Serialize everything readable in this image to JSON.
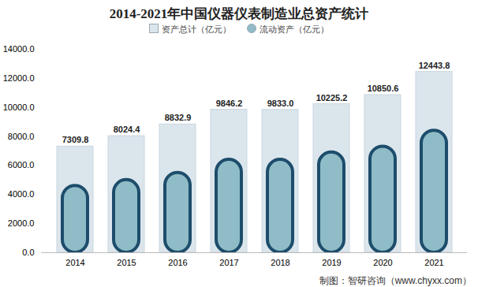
{
  "chart_data": {
    "type": "bar",
    "title": "2014-2021年中国仪器仪表制造业总资产统计",
    "source": "制图：智研咨询（www.chyxx.com）",
    "categories": [
      "2014",
      "2015",
      "2016",
      "2017",
      "2018",
      "2019",
      "2020",
      "2021"
    ],
    "series": [
      {
        "name": "资产总计（亿元）",
        "color": "#dbe5ec",
        "values": [
          7309.8,
          8024.4,
          8832.9,
          9846.2,
          9833.0,
          10225.2,
          10850.6,
          12443.8
        ],
        "value_labels": [
          "7309.8",
          "8024.4",
          "8832.9",
          "9846.2",
          "9833.0",
          "10225.2",
          "10850.6",
          "12443.8"
        ]
      },
      {
        "name": "流动资产（亿元）",
        "color": "#8fbcc6",
        "values": [
          4600,
          5000,
          5500,
          6400,
          6400,
          6900,
          7300,
          8400
        ]
      }
    ],
    "ylim": [
      0,
      14000
    ],
    "yticks": [
      {
        "value": 0,
        "label": "0.0"
      },
      {
        "value": 2000,
        "label": "2000.0"
      },
      {
        "value": 4000,
        "label": "4000.0"
      },
      {
        "value": 6000,
        "label": "6000.0"
      },
      {
        "value": 8000,
        "label": "8000.0"
      },
      {
        "value": 10000,
        "label": "10000.0"
      },
      {
        "value": 12000,
        "label": "12000.0"
      },
      {
        "value": 14000,
        "label": "14000.0"
      }
    ],
    "grid": false,
    "data_labels": true,
    "legend": "top"
  }
}
